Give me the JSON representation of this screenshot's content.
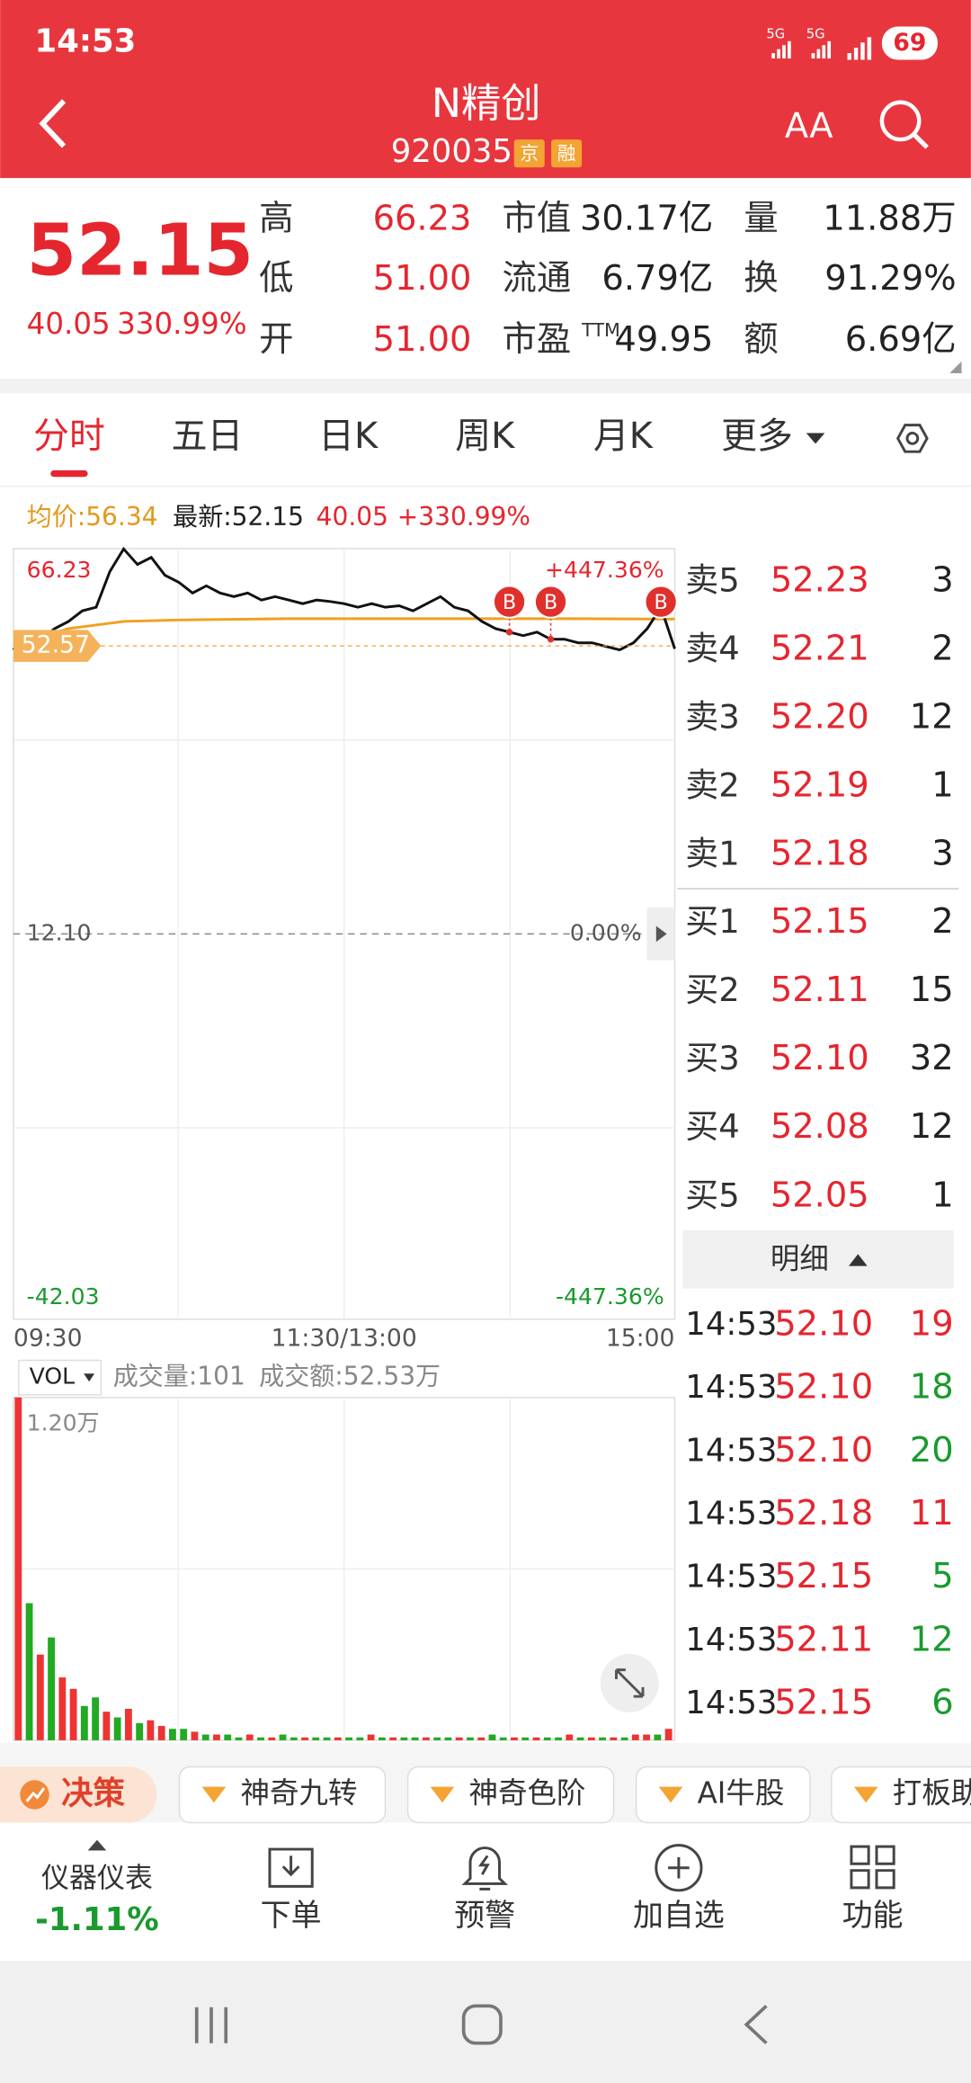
{
  "status_bar": {
    "time": "14:53",
    "network": [
      "5G",
      "5G"
    ],
    "battery": "69"
  },
  "header": {
    "title": "N精创",
    "code": "920035",
    "tags": [
      "京",
      "融"
    ],
    "font_button": "AA"
  },
  "quote": {
    "price": "52.15",
    "change": "40.05",
    "change_pct": "330.99%",
    "stats": [
      [
        {
          "label": "高",
          "value": "66.23"
        },
        {
          "label": "低",
          "value": "51.00"
        },
        {
          "label": "开",
          "value": "51.00"
        }
      ],
      [
        {
          "label": "市值",
          "value": "30.17亿"
        },
        {
          "label": "流通",
          "value": "6.79亿"
        },
        {
          "label": "市盈",
          "sup": "TTM",
          "value": "49.95"
        }
      ],
      [
        {
          "label": "量",
          "value": "11.88万"
        },
        {
          "label": "换",
          "value": "91.29%"
        },
        {
          "label": "额",
          "value": "6.69亿"
        }
      ]
    ]
  },
  "tabs": [
    "分时",
    "五日",
    "日K",
    "周K",
    "月K",
    "更多"
  ],
  "info": {
    "avg": "均价:56.34",
    "latest": "最新:52.15",
    "change": "40.05",
    "change_pct": "+330.99%"
  },
  "price_chart": {
    "type": "line",
    "color": "#111111",
    "avg_color": "#f0a020",
    "values": [
      52.0,
      54.5,
      53.5,
      55.0,
      56.0,
      57.5,
      58.0,
      63.0,
      66.2,
      64.0,
      65.0,
      62.5,
      61.5,
      60.0,
      61.0,
      60.0,
      59.5,
      60.0,
      59.0,
      59.5,
      59.0,
      58.5,
      59.0,
      58.8,
      58.5,
      58.0,
      58.5,
      58.0,
      58.2,
      57.5,
      58.5,
      59.5,
      58.0,
      57.5,
      56.0,
      55.0,
      54.5,
      54.0,
      54.5,
      53.5,
      53.5,
      53.0,
      53.0,
      52.5,
      52.0,
      53.0,
      55.0,
      58.0,
      52.15
    ],
    "avg_values": [
      52.6,
      55.0,
      56.0,
      56.2,
      56.3,
      56.4,
      56.4,
      56.4,
      56.4,
      56.4,
      56.4,
      56.35,
      56.34
    ],
    "ylim": [
      -42.03,
      66.23
    ],
    "yticks": [
      66.23,
      {
        "value": 12.1,
        "label": "12.10"
      },
      -42.03
    ],
    "right_ticks": [
      "+447.36%",
      "0.00%",
      "-447.36%"
    ],
    "price_tag": 52.57,
    "markers": [
      {
        "label": "B",
        "index": 36
      },
      {
        "label": "B",
        "index": 39
      },
      {
        "label": "B",
        "index": 47
      }
    ],
    "x_labels": [
      "09:30",
      "11:30/13:00",
      "15:00"
    ]
  },
  "order_book": {
    "asks": [
      {
        "label": "卖5",
        "price": "52.23",
        "qty": "3"
      },
      {
        "label": "卖4",
        "price": "52.21",
        "qty": "2"
      },
      {
        "label": "卖3",
        "price": "52.20",
        "qty": "12"
      },
      {
        "label": "卖2",
        "price": "52.19",
        "qty": "1"
      },
      {
        "label": "卖1",
        "price": "52.18",
        "qty": "3"
      }
    ],
    "bids": [
      {
        "label": "买1",
        "price": "52.15",
        "qty": "2"
      },
      {
        "label": "买2",
        "price": "52.11",
        "qty": "15"
      },
      {
        "label": "买3",
        "price": "52.10",
        "qty": "32"
      },
      {
        "label": "买4",
        "price": "52.08",
        "qty": "12"
      },
      {
        "label": "买5",
        "price": "52.05",
        "qty": "1"
      }
    ],
    "detail_title": "明细",
    "trades": [
      {
        "time": "14:53",
        "price": "52.10",
        "qty": "19",
        "qty_color": "#e5262f"
      },
      {
        "time": "14:53",
        "price": "52.10",
        "qty": "18",
        "qty_color": "#1a9a2e"
      },
      {
        "time": "14:53",
        "price": "52.10",
        "qty": "20",
        "qty_color": "#1a9a2e"
      },
      {
        "time": "14:53",
        "price": "52.18",
        "qty": "11",
        "qty_color": "#e5262f"
      },
      {
        "time": "14:53",
        "price": "52.15",
        "qty": "5",
        "qty_color": "#1a9a2e"
      },
      {
        "time": "14:53",
        "price": "52.11",
        "qty": "12",
        "qty_color": "#1a9a2e"
      },
      {
        "time": "14:53",
        "price": "52.15",
        "qty": "6",
        "qty_color": "#1a9a2e"
      }
    ]
  },
  "volume_chart": {
    "type": "bar",
    "selector": "VOL",
    "volume": "成交量:101",
    "amount": "成交额:52.53万",
    "ylim": [
      0,
      1.2
    ],
    "yticks": [
      {
        "value": 1.2,
        "label": "1.20万"
      }
    ],
    "values": [
      1.2,
      0.48,
      0.3,
      0.36,
      0.22,
      0.18,
      0.12,
      0.15,
      0.1,
      0.08,
      0.11,
      0.06,
      0.07,
      0.05,
      0.04,
      0.04,
      0.03,
      0.02,
      0.02,
      0.02,
      0.01,
      0.02,
      0.01,
      0.01,
      0.02,
      0.01,
      0.01,
      0.01,
      0.01,
      0.01,
      0.01,
      0.01,
      0.02,
      0.01,
      0.01,
      0.01,
      0.01,
      0.01,
      0.01,
      0.01,
      0.01,
      0.01,
      0.01,
      0.02,
      0.01,
      0.01,
      0.01,
      0.01,
      0.01,
      0.01,
      0.02,
      0.01,
      0.01,
      0.01,
      0.01,
      0.01,
      0.02,
      0.02,
      0.02,
      0.04
    ],
    "colors": [
      "#e33",
      "#2a2",
      "#e33",
      "#2a2",
      "#e33",
      "#e33",
      "#2a2",
      "#2a2",
      "#e33",
      "#2a2",
      "#e33",
      "#2a2",
      "#e33",
      "#e33",
      "#2a2",
      "#2a2",
      "#e33",
      "#2a2",
      "#e33",
      "#2a2",
      "#2a2",
      "#e33",
      "#2a2",
      "#e33",
      "#2a2",
      "#2a2",
      "#e33",
      "#2a2",
      "#2a2",
      "#e33",
      "#2a2",
      "#2a2",
      "#e33",
      "#2a2",
      "#e33",
      "#2a2",
      "#2a2",
      "#e33",
      "#2a2",
      "#2a2",
      "#e33",
      "#2a2",
      "#e33",
      "#2a2",
      "#2a2",
      "#e33",
      "#2a2",
      "#e33",
      "#2a2",
      "#2a2",
      "#e33",
      "#2a2",
      "#e33",
      "#2a2",
      "#e33",
      "#2a2",
      "#e33",
      "#e33",
      "#2a2",
      "#e33"
    ]
  },
  "tools": [
    "决策",
    "神奇九转",
    "神奇色阶",
    "AI牛股",
    "打板助手"
  ],
  "bottom_bar": {
    "gauge_label": "仪器仪表",
    "gauge_value": "-1.11%",
    "buttons": [
      "下单",
      "预警",
      "加自选",
      "功能"
    ]
  }
}
